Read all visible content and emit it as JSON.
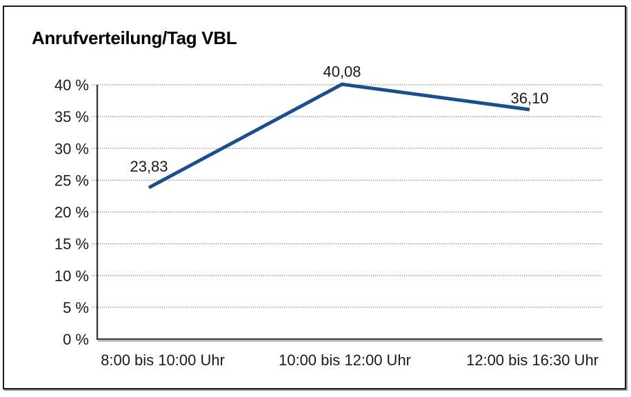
{
  "title": "Anrufverteilung/Tag VBL",
  "chart_data": {
    "type": "line",
    "title": "Anrufverteilung/Tag VBL",
    "categories": [
      "8:00 bis 10:00 Uhr",
      "10:00 bis 12:00 Uhr",
      "12:00 bis 16:30 Uhr"
    ],
    "series": [
      {
        "name": "Anrufverteilung/Tag VBL",
        "values": [
          23.83,
          40.08,
          36.1
        ]
      }
    ],
    "data_labels": [
      "23,83",
      "40,08",
      "36,10"
    ],
    "xlabel": "",
    "ylabel": "",
    "ylim": [
      0,
      40
    ],
    "y_tick_step": 5,
    "y_tick_labels": [
      "0 %",
      "5 %",
      "10 %",
      "15 %",
      "20 %",
      "25 %",
      "30 %",
      "35 %",
      "40 %"
    ],
    "grid": "horizontal-dotted",
    "legend": "none",
    "colors": {
      "line": "#184f93",
      "grid": "#7a7a7a",
      "axis": "#3a3a3a",
      "axis_shadow": "#a0a0a0",
      "text": "#1a1a1a",
      "frame": "#1b1b1b",
      "frame_shadow": "#9a9a9a"
    }
  }
}
